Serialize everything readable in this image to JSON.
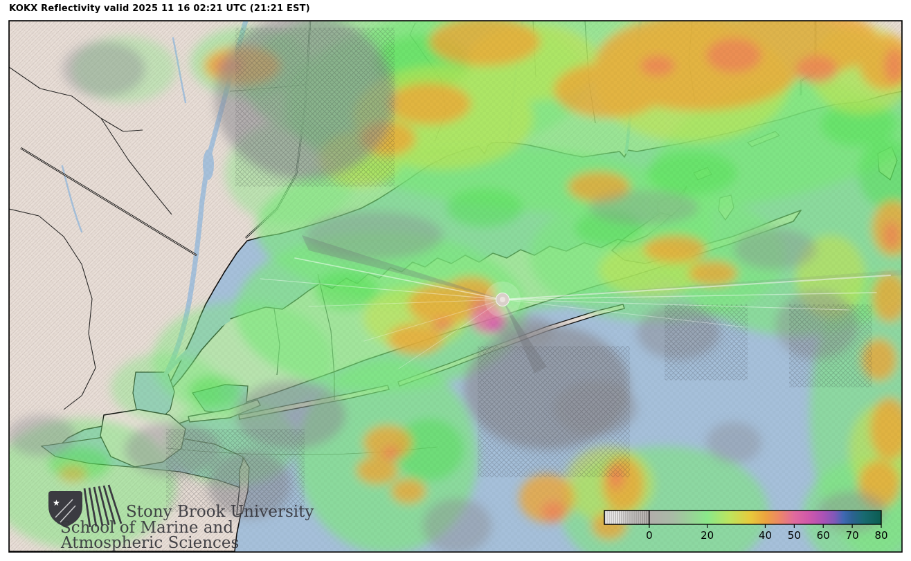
{
  "header": {
    "title": "KOKX Reflectivity valid 2025 11 16 02:21 UTC (21:21 EST)"
  },
  "map": {
    "description": "radar-reflectivity-map",
    "radar_marker": "radar-site-dot",
    "colors": {
      "water": "#a6c0da",
      "land": "#e9dfd8",
      "coastline": "#0a0a0a",
      "echo_green": "#7de87d",
      "echo_bright_green": "#4ee04e",
      "echo_yellow_green": "#cbe34c",
      "echo_orange": "#f0a636",
      "echo_salmon": "#ef7e58",
      "echo_pink": "#ec6fa2",
      "echo_magenta": "#d844b4",
      "echo_gray": "#8d8d93",
      "radar_dot": "#d9cfc9"
    }
  },
  "colorbar": {
    "min_dbz": -15.5,
    "max_dbz": 80,
    "ticks": [
      0,
      20,
      40,
      50,
      60,
      70,
      80
    ],
    "hatched_below_dbz": 0,
    "stops": [
      {
        "dbz": -15.5,
        "color": "#ffffff"
      },
      {
        "dbz": 0,
        "color": "#b2adab"
      },
      {
        "dbz": 8,
        "color": "#a9bba6"
      },
      {
        "dbz": 20,
        "color": "#8ae88a"
      },
      {
        "dbz": 28,
        "color": "#bfe45c"
      },
      {
        "dbz": 35,
        "color": "#e8c93c"
      },
      {
        "dbz": 40,
        "color": "#eca43e"
      },
      {
        "dbz": 45,
        "color": "#ec8668"
      },
      {
        "dbz": 50,
        "color": "#e06a9e"
      },
      {
        "dbz": 55,
        "color": "#d058aa"
      },
      {
        "dbz": 60,
        "color": "#ab52b6"
      },
      {
        "dbz": 64,
        "color": "#7e58b8"
      },
      {
        "dbz": 67,
        "color": "#3f68b2"
      },
      {
        "dbz": 70,
        "color": "#2c6292"
      },
      {
        "dbz": 74,
        "color": "#186a70"
      },
      {
        "dbz": 80,
        "color": "#0c5c50"
      }
    ]
  },
  "logo": {
    "lines": [
      "Stony Brook University",
      "School of Marine and",
      "Atmospheric Sciences"
    ]
  }
}
